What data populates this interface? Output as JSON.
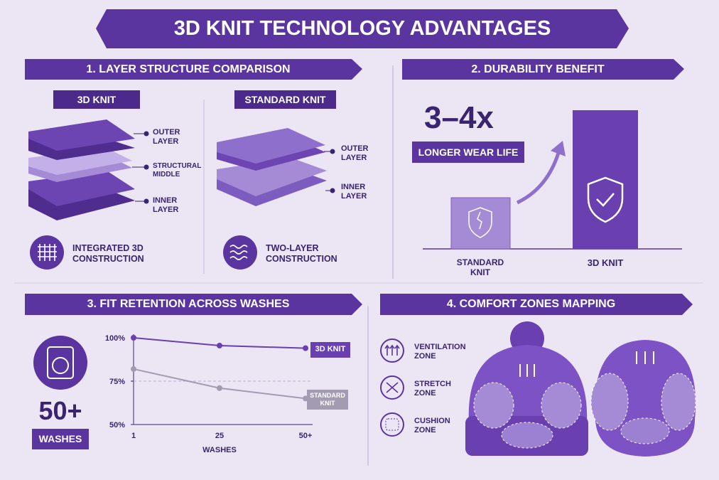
{
  "title": "3D KNIT TECHNOLOGY ADVANTAGES",
  "layer_section": {
    "heading": "1. LAYER STRUCTURE COMPARISON",
    "knit_3d": {
      "label": "3D KNIT",
      "layers": [
        "OUTER LAYER",
        "STRUCTURAL MIDDLE",
        "INNER LAYER"
      ],
      "feature": "INTEGRATED 3D CONSTRUCTION"
    },
    "knit_standard": {
      "label": "STANDARD KNIT",
      "layers": [
        "OUTER LAYER",
        "INNER LAYER"
      ],
      "feature": "TWO-LAYER CONSTRUCTION"
    }
  },
  "durability_section": {
    "heading": "2. DURABILITY BENEFIT",
    "multiplier": "3–4x",
    "caption": "LONGER WEAR LIFE",
    "bar_labels": [
      "STANDARD KNIT",
      "3D KNIT"
    ]
  },
  "fit_section": {
    "heading": "3. FIT RETENTION ACROSS WASHES",
    "badge_number": "50+",
    "badge_label": "WASHES"
  },
  "chart_data": {
    "type": "line",
    "x_label": "WASHES",
    "categories": [
      "1",
      "25",
      "50+"
    ],
    "series": [
      {
        "name": "3D KNIT",
        "color": "#6a3fb0",
        "values": [
          100,
          95.5,
          94
        ]
      },
      {
        "name": "STANDARD KNIT",
        "color": "#a29bb2",
        "values": [
          82,
          71,
          65
        ]
      }
    ],
    "ylim": [
      50,
      100
    ],
    "yticks": [
      {
        "value": 50,
        "label": "50%"
      },
      {
        "value": 75,
        "label": "75%"
      },
      {
        "value": 100,
        "label": "100%"
      }
    ],
    "grid": true
  },
  "comfort_section": {
    "heading": "4. COMFORT ZONES MAPPING",
    "zones": [
      "VENTILATION ZONE",
      "STRETCH ZONE",
      "CUSHION ZONE"
    ]
  }
}
